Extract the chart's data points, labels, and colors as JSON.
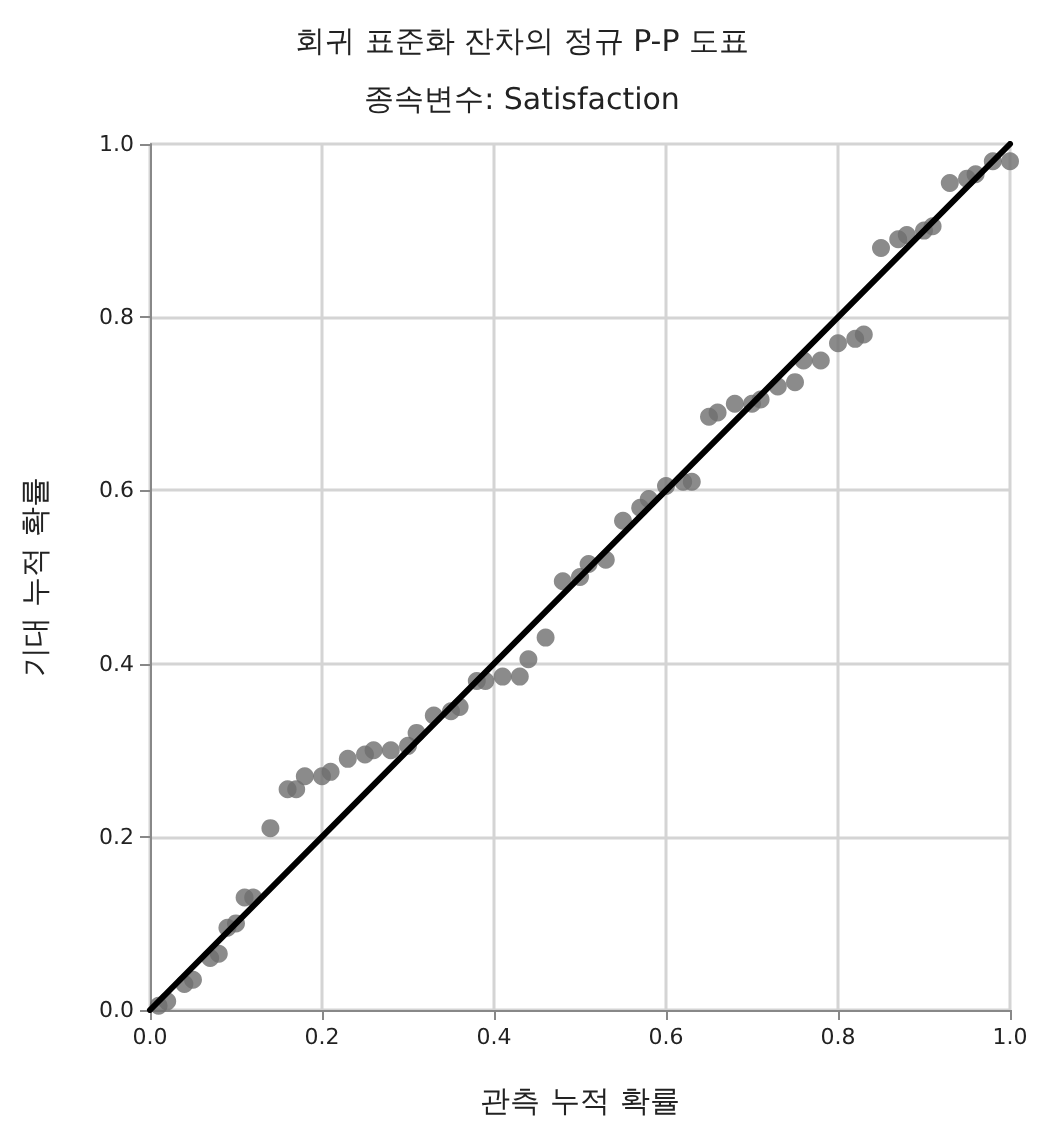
{
  "chart_data": {
    "type": "scatter",
    "title": "회귀 표준화 잔차의 정규 P-P 도표",
    "subtitle": "종속변수: Satisfaction",
    "xlabel": "관측 누적 확률",
    "ylabel": "기대 누적 확률",
    "xlim": [
      0,
      1
    ],
    "ylim": [
      0,
      1
    ],
    "xticks": [
      {
        "value": 0,
        "label": "0.0"
      },
      {
        "value": 0.2,
        "label": "0.2"
      },
      {
        "value": 0.4,
        "label": "0.4"
      },
      {
        "value": 0.6,
        "label": "0.6"
      },
      {
        "value": 0.8,
        "label": "0.8"
      },
      {
        "value": 1,
        "label": "1.0"
      }
    ],
    "yticks": [
      {
        "value": 0,
        "label": "0.0"
      },
      {
        "value": 0.2,
        "label": "0.2"
      },
      {
        "value": 0.4,
        "label": "0.4"
      },
      {
        "value": 0.6,
        "label": "0.6"
      },
      {
        "value": 0.8,
        "label": "0.8"
      },
      {
        "value": 1,
        "label": "1.0"
      }
    ],
    "grid": true,
    "marker": "circle",
    "series": [
      {
        "color": "#6e6e6e",
        "x": [
          0.01,
          0.02,
          0.04,
          0.05,
          0.07,
          0.08,
          0.09,
          0.1,
          0.11,
          0.12,
          0.14,
          0.16,
          0.17,
          0.18,
          0.2,
          0.21,
          0.23,
          0.25,
          0.26,
          0.28,
          0.3,
          0.31,
          0.33,
          0.35,
          0.36,
          0.38,
          0.39,
          0.41,
          0.43,
          0.44,
          0.46,
          0.48,
          0.5,
          0.51,
          0.53,
          0.55,
          0.57,
          0.58,
          0.6,
          0.62,
          0.63,
          0.65,
          0.66,
          0.68,
          0.7,
          0.71,
          0.73,
          0.75,
          0.76,
          0.78,
          0.8,
          0.82,
          0.83,
          0.85,
          0.87,
          0.88,
          0.9,
          0.91,
          0.93,
          0.95,
          0.96,
          0.98,
          1.0
        ],
        "values": [
          0.005,
          0.01,
          0.03,
          0.035,
          0.06,
          0.065,
          0.095,
          0.1,
          0.13,
          0.13,
          0.21,
          0.255,
          0.255,
          0.27,
          0.27,
          0.275,
          0.29,
          0.295,
          0.3,
          0.3,
          0.305,
          0.32,
          0.34,
          0.345,
          0.35,
          0.38,
          0.38,
          0.385,
          0.385,
          0.405,
          0.43,
          0.495,
          0.5,
          0.515,
          0.52,
          0.565,
          0.58,
          0.59,
          0.605,
          0.61,
          0.61,
          0.685,
          0.69,
          0.7,
          0.7,
          0.705,
          0.72,
          0.725,
          0.75,
          0.75,
          0.77,
          0.775,
          0.78,
          0.88,
          0.89,
          0.895,
          0.9,
          0.905,
          0.955,
          0.96,
          0.965,
          0.98,
          0.98
        ]
      },
      {
        "type": "line",
        "color": "#000000",
        "marker": "none",
        "line_style": "solid",
        "x": [
          0,
          1
        ],
        "values": [
          0,
          1
        ]
      }
    ]
  }
}
